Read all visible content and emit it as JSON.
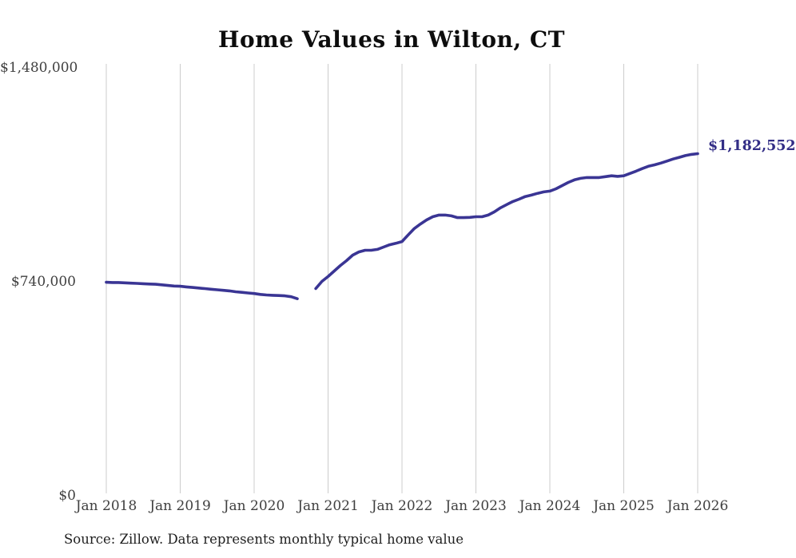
{
  "title": "Home Values in Wilton, CT",
  "source_note": "Source: Zillow. Data represents monthly typical home value",
  "end_label": "$1,182,552",
  "colors": {
    "line": "#3a3594",
    "end_label_text": "#322d86",
    "grid": "#cccccc",
    "axis_text": "#3f3f3f",
    "title_text": "#0d0d0d",
    "source_text": "#1f1f1f",
    "background": "#ffffff"
  },
  "chart_data": {
    "type": "line",
    "title": "Home Values in Wilton, CT",
    "xlabel": "",
    "ylabel": "",
    "x_tick_labels": [
      "Jan 2018",
      "Jan 2019",
      "Jan 2020",
      "Jan 2021",
      "Jan 2022",
      "Jan 2023",
      "Jan 2024",
      "Jan 2025",
      "Jan 2026"
    ],
    "y_tick_labels": [
      "$0",
      "$740,000",
      "$1,480,000"
    ],
    "y_tick_values": [
      0,
      740000,
      1480000
    ],
    "ylim": [
      0,
      1480000
    ],
    "grid": "vertical-only",
    "legend": "none",
    "annotations": [
      {
        "text": "$1,182,552",
        "position": "end-of-line"
      }
    ],
    "series": [
      {
        "name": "Monthly typical home value",
        "x_start": "2018-01",
        "interval": "monthly",
        "note": "null values = missing data gap (Sep-Oct 2020)",
        "values": [
          737000,
          736000,
          736000,
          735000,
          734000,
          733000,
          732000,
          731000,
          730000,
          728000,
          726000,
          724000,
          723000,
          721000,
          719000,
          717000,
          715000,
          713000,
          711000,
          709000,
          707000,
          704000,
          702000,
          700000,
          698000,
          695000,
          693000,
          692000,
          691000,
          690000,
          687000,
          680000,
          null,
          null,
          715000,
          740000,
          757000,
          776000,
          795000,
          812000,
          831000,
          842000,
          848000,
          848000,
          851000,
          859000,
          867000,
          872000,
          878000,
          901000,
          923000,
          939000,
          953000,
          964000,
          970000,
          970000,
          967000,
          961000,
          961000,
          962000,
          964000,
          964000,
          970000,
          981000,
          995000,
          1006000,
          1017000,
          1025000,
          1034000,
          1039000,
          1045000,
          1050000,
          1053000,
          1061000,
          1072000,
          1083000,
          1092000,
          1097000,
          1100000,
          1100000,
          1100000,
          1103000,
          1106000,
          1104000,
          1106000,
          1114000,
          1122000,
          1131000,
          1139000,
          1144000,
          1150000,
          1157000,
          1164000,
          1170000,
          1176000,
          1180000,
          1182552
        ]
      }
    ]
  }
}
